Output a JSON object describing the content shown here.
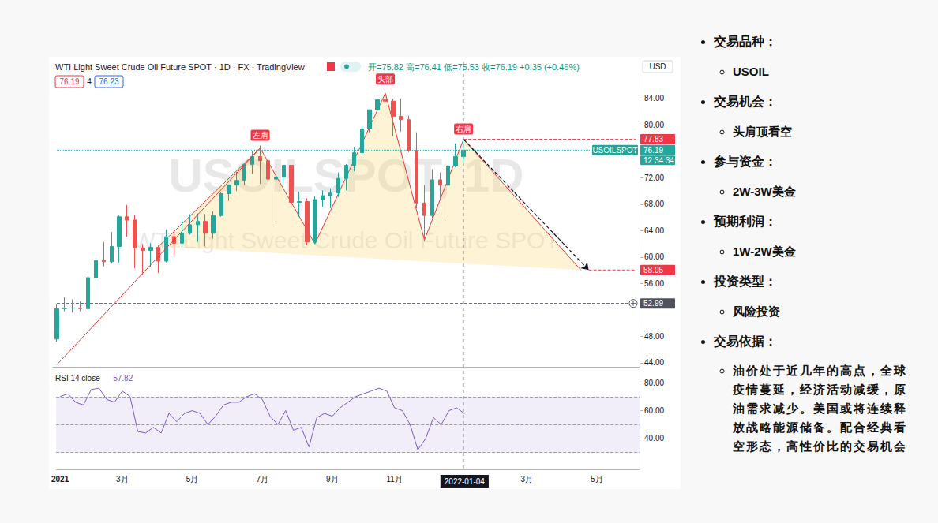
{
  "chart_data": {
    "type": "candlestick",
    "header": {
      "title": "WTI Light Sweet Crude Oil Future SPOT · 1D · FX · TradingView",
      "quote": "开=75.82 高=76.41 低=75.53 收=76.19 +0.35 (+0.46%)",
      "bid": "76.19",
      "spread": "4",
      "ask": "76.23",
      "currency": "USD"
    },
    "watermark": [
      "USOILSPOT, 1D",
      "WTI Light Sweet Crude Oil Future SPOT"
    ],
    "categories": [
      "2021",
      null,
      null,
      null,
      null,
      null,
      null,
      null,
      "3月",
      null,
      null,
      null,
      null,
      null,
      null,
      null,
      null,
      "5月",
      null,
      null,
      null,
      null,
      null,
      null,
      null,
      null,
      "7月",
      null,
      null,
      null,
      null,
      null,
      null,
      null,
      null,
      "9月",
      null,
      null,
      null,
      null,
      null,
      null,
      null,
      "11月",
      null,
      null,
      null,
      null,
      null,
      null,
      null,
      null,
      "2022-01-04",
      null,
      null,
      null,
      null,
      null,
      null,
      null,
      "3月",
      null,
      null,
      null,
      null,
      null,
      null,
      null,
      null,
      "5月",
      null,
      null,
      null,
      null,
      null
    ],
    "ohlc": [
      [
        47.6,
        52.8,
        47.2,
        52.2
      ],
      [
        52.2,
        53.9,
        51.8,
        52.3
      ],
      [
        52.3,
        53.6,
        51.6,
        52.3
      ],
      [
        52.3,
        53.3,
        51.8,
        52.2
      ],
      [
        52.2,
        57.2,
        52.0,
        56.9
      ],
      [
        56.9,
        59.8,
        56.8,
        59.5
      ],
      [
        59.5,
        62.3,
        58.6,
        59.3
      ],
      [
        59.3,
        63.8,
        59.0,
        61.6
      ],
      [
        61.6,
        66.4,
        59.2,
        66.1
      ],
      [
        66.1,
        67.9,
        63.1,
        65.6
      ],
      [
        65.6,
        66.4,
        58.3,
        61.4
      ],
      [
        61.4,
        62.0,
        57.3,
        61.0
      ],
      [
        61.0,
        62.1,
        58.5,
        61.5
      ],
      [
        61.5,
        61.8,
        57.6,
        59.4
      ],
      [
        59.4,
        64.2,
        59.2,
        63.1
      ],
      [
        63.1,
        64.0,
        60.3,
        62.1
      ],
      [
        62.1,
        65.5,
        61.6,
        63.6
      ],
      [
        63.6,
        66.5,
        63.4,
        64.9
      ],
      [
        64.9,
        66.6,
        62.3,
        65.4
      ],
      [
        65.4,
        66.5,
        61.6,
        63.6
      ],
      [
        63.6,
        66.9,
        62.8,
        66.3
      ],
      [
        66.3,
        69.8,
        66.1,
        69.6
      ],
      [
        69.6,
        71.0,
        68.5,
        70.9
      ],
      [
        70.9,
        72.9,
        70.0,
        71.6
      ],
      [
        71.6,
        74.2,
        70.9,
        74.0
      ],
      [
        74.0,
        76.0,
        72.6,
        75.2
      ],
      [
        75.2,
        76.9,
        71.1,
        74.6
      ],
      [
        74.6,
        75.5,
        71.3,
        71.8
      ],
      [
        71.8,
        72.5,
        65.0,
        72.1
      ],
      [
        72.1,
        74.0,
        71.1,
        73.9
      ],
      [
        73.9,
        74.0,
        67.9,
        68.3
      ],
      [
        68.3,
        69.9,
        66.1,
        68.4
      ],
      [
        68.4,
        68.9,
        61.8,
        62.3
      ],
      [
        62.3,
        69.2,
        62.0,
        68.7
      ],
      [
        68.7,
        70.1,
        67.6,
        69.3
      ],
      [
        69.3,
        70.4,
        67.4,
        69.7
      ],
      [
        69.7,
        72.8,
        69.1,
        71.9
      ],
      [
        71.9,
        74.1,
        70.1,
        73.9
      ],
      [
        73.9,
        76.7,
        73.0,
        75.8
      ],
      [
        75.8,
        79.8,
        75.5,
        79.4
      ],
      [
        79.4,
        82.3,
        78.9,
        82.3
      ],
      [
        82.3,
        84.2,
        81.1,
        83.8
      ],
      [
        83.8,
        85.4,
        81.1,
        83.6
      ],
      [
        83.6,
        84.0,
        78.3,
        81.3
      ],
      [
        81.3,
        84.0,
        79.0,
        80.8
      ],
      [
        80.8,
        81.4,
        75.9,
        76.1
      ],
      [
        76.1,
        78.9,
        67.4,
        68.2
      ],
      [
        68.2,
        70.9,
        62.4,
        66.3
      ],
      [
        66.3,
        73.3,
        65.9,
        71.7
      ],
      [
        71.7,
        72.8,
        68.8,
        70.9
      ],
      [
        70.9,
        74.0,
        66.1,
        73.8
      ],
      [
        73.8,
        77.2,
        73.6,
        75.2
      ],
      [
        75.2,
        77.8,
        74.3,
        76.19
      ],
      null,
      null,
      null,
      null,
      null,
      null,
      null,
      null,
      null,
      null,
      null,
      null,
      null,
      null,
      null,
      null,
      null,
      null,
      null,
      null,
      null,
      null
    ],
    "ylim": [
      43.4,
      89.6
    ],
    "yticks": [
      {
        "value": 44,
        "label": "44.00"
      },
      {
        "value": 48,
        "label": "48.00"
      },
      {
        "value": 56,
        "label": "56.00"
      },
      {
        "value": 60,
        "label": "60.00"
      },
      {
        "value": 64,
        "label": "64.00"
      },
      {
        "value": 68,
        "label": "68.00"
      },
      {
        "value": 72,
        "label": "72.00"
      },
      {
        "value": 80,
        "label": "80.00"
      },
      {
        "value": 84,
        "label": "84.00"
      }
    ],
    "grid": false,
    "price_line": {
      "value": 76.19,
      "symbol": "USOILSPOT",
      "countdown": "12:34:34",
      "color": "#26a69a",
      "line_style": "dotted"
    },
    "levels": [
      {
        "value": 77.83,
        "from": 52,
        "to": 74,
        "color": "#f23645",
        "line_style": "dashed"
      },
      {
        "value": 58.05,
        "from": 68,
        "to": 74,
        "color": "#f23645",
        "line_style": "dashed"
      },
      {
        "value": 52.99,
        "from": 0,
        "to": 74,
        "color": "#50535e",
        "line_style": "dashed"
      }
    ],
    "pattern": {
      "labels": [
        {
          "text": "左肩",
          "x": 26,
          "y": 76.9
        },
        {
          "text": "头部",
          "x": 42,
          "y": 85.4
        },
        {
          "text": "右肩",
          "x": 52,
          "y": 77.83
        }
      ],
      "outline": [
        [
          13,
          61.6
        ],
        [
          26,
          76.5
        ],
        [
          33,
          62.0
        ],
        [
          42,
          84.8
        ],
        [
          47,
          62.6
        ],
        [
          52,
          77.83
        ],
        [
          67,
          58.05
        ]
      ],
      "trend": [
        [
          0,
          43.7
        ],
        [
          26,
          76.5
        ]
      ],
      "target": [
        [
          52,
          77.83
        ],
        [
          68,
          58.05
        ]
      ]
    },
    "rsi": {
      "label": "RSI 14 close",
      "color": "#7e57c2",
      "values": [
        70,
        72,
        66,
        64,
        75,
        76,
        68,
        66,
        74,
        70,
        45,
        44,
        48,
        44,
        58,
        52,
        58,
        60,
        58,
        50,
        56,
        64,
        66,
        66,
        70,
        72,
        68,
        56,
        50,
        60,
        46,
        48,
        34,
        55,
        58,
        56,
        62,
        66,
        70,
        72,
        74,
        76,
        74,
        62,
        60,
        50,
        32,
        40,
        55,
        50,
        60,
        62,
        57.82,
        null,
        null,
        null,
        null,
        null,
        null,
        null,
        null,
        null,
        null,
        null,
        null,
        null,
        null,
        null,
        null,
        null,
        null,
        null,
        null,
        null
      ],
      "ylim": [
        18,
        88.5
      ],
      "yticks": [
        {
          "value": 40,
          "label": "40.00"
        },
        {
          "value": 60,
          "label": "60.00"
        },
        {
          "value": 80,
          "label": "80.00"
        }
      ],
      "levels": [
        30,
        50,
        70
      ]
    }
  },
  "panel": {
    "items": [
      {
        "label": "交易品种：",
        "value": "USOIL"
      },
      {
        "label": "交易机会：",
        "value": "头肩顶看空"
      },
      {
        "label": "参与资金：",
        "value": "2W-3W美金"
      },
      {
        "label": "预期利润：",
        "value": "1W-2W美金"
      },
      {
        "label": "投资类型：",
        "value": "风险投资"
      },
      {
        "label": "交易依据：",
        "value": "油价处于近几年的高点，全球疫情蔓延，经济活动减缓，原油需求减少。美国或将连续释放战略能源储备。配合经典看空形态，高性价比的交易机会"
      }
    ]
  }
}
